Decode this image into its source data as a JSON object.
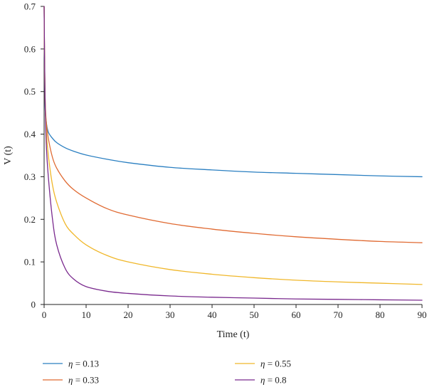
{
  "chart_data": {
    "type": "line",
    "title": "",
    "xlabel": "Time (t)",
    "ylabel": "V (t)",
    "xlim": [
      0,
      90
    ],
    "ylim": [
      0,
      0.7
    ],
    "x_ticks": [
      0,
      10,
      20,
      30,
      40,
      50,
      60,
      70,
      80,
      90
    ],
    "y_ticks": [
      0,
      0.1,
      0.2,
      0.3,
      0.4,
      0.5,
      0.6,
      0.7
    ],
    "y_tick_labels": [
      "0",
      "0.1",
      "0.2",
      "0.3",
      "0.4",
      "0.5",
      "0.6",
      "0.7"
    ],
    "grid": false,
    "legend_position": "bottom",
    "series": [
      {
        "name": "η = 0.13",
        "symbol": "η",
        "value_label": " = 0.13",
        "color": "#2a7fc1",
        "x": [
          0,
          0.2,
          0.5,
          1,
          2,
          3,
          5,
          7,
          10,
          15,
          20,
          30,
          40,
          50,
          60,
          70,
          80,
          90
        ],
        "y": [
          0.7,
          0.48,
          0.43,
          0.405,
          0.39,
          0.38,
          0.368,
          0.36,
          0.351,
          0.341,
          0.333,
          0.322,
          0.316,
          0.311,
          0.308,
          0.305,
          0.302,
          0.3
        ]
      },
      {
        "name": "η = 0.33",
        "symbol": "η",
        "value_label": " = 0.33",
        "color": "#e06a32",
        "x": [
          0,
          0.2,
          0.5,
          1,
          2,
          3,
          5,
          7,
          10,
          15,
          20,
          30,
          40,
          50,
          60,
          70,
          80,
          90
        ],
        "y": [
          0.7,
          0.5,
          0.43,
          0.39,
          0.345,
          0.32,
          0.29,
          0.27,
          0.25,
          0.225,
          0.21,
          0.19,
          0.177,
          0.167,
          0.159,
          0.153,
          0.148,
          0.145
        ]
      },
      {
        "name": "η = 0.55",
        "symbol": "η",
        "value_label": " = 0.55",
        "color": "#f0b72a",
        "x": [
          0,
          0.2,
          0.5,
          1,
          2,
          3,
          5,
          7,
          10,
          15,
          20,
          30,
          40,
          50,
          60,
          70,
          80,
          90
        ],
        "y": [
          0.7,
          0.5,
          0.41,
          0.35,
          0.28,
          0.24,
          0.19,
          0.165,
          0.14,
          0.115,
          0.1,
          0.082,
          0.071,
          0.063,
          0.057,
          0.053,
          0.05,
          0.047
        ]
      },
      {
        "name": "η = 0.8",
        "symbol": "η",
        "value_label": " = 0.8",
        "color": "#7a2a8e",
        "x": [
          0,
          0.2,
          0.5,
          1,
          2,
          3,
          5,
          7,
          10,
          15,
          20,
          30,
          40,
          50,
          60,
          70,
          80,
          90
        ],
        "y": [
          0.7,
          0.5,
          0.38,
          0.3,
          0.2,
          0.14,
          0.085,
          0.06,
          0.042,
          0.031,
          0.026,
          0.02,
          0.017,
          0.015,
          0.013,
          0.012,
          0.011,
          0.01
        ]
      }
    ]
  }
}
